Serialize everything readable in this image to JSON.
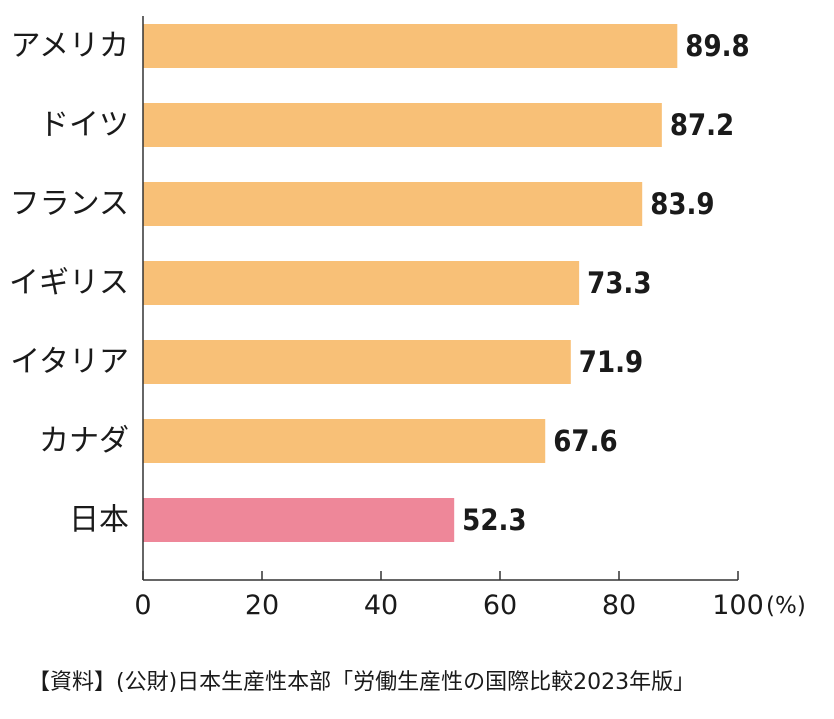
{
  "chart_data": {
    "type": "bar",
    "orientation": "horizontal",
    "categories": [
      "アメリカ",
      "ドイツ",
      "フランス",
      "イギリス",
      "イタリア",
      "カナダ",
      "日本"
    ],
    "values": [
      89.8,
      87.2,
      83.9,
      73.3,
      71.9,
      67.6,
      52.3
    ],
    "value_labels": [
      "89.8",
      "87.2",
      "83.9",
      "73.3",
      "71.9",
      "67.6",
      "52.3"
    ],
    "xlim": [
      0,
      100
    ],
    "xticks": [
      0,
      20,
      40,
      60,
      80,
      100
    ],
    "tick_labels": [
      "0",
      "20",
      "40",
      "60",
      "80",
      "100"
    ],
    "unit": "(%)",
    "colors": {
      "bar": "#f8c077",
      "highlight": "#ee8799",
      "axis": "#333333"
    },
    "highlight_category": "日本",
    "grid": false
  },
  "source_note": "【資料】(公財)日本生産性本部「労働生産性の国際比較2023年版」"
}
